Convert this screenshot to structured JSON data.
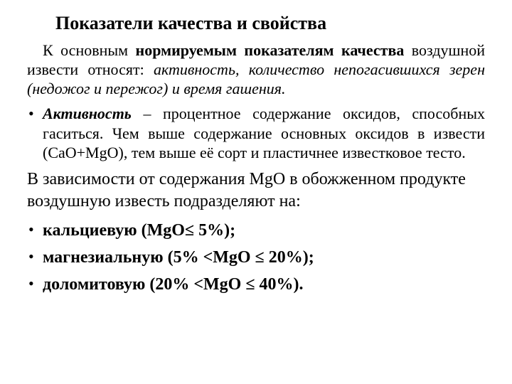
{
  "title": "Показатели качества и свойства",
  "intro": {
    "lead": "К основным ",
    "bold1": "нормируемым показателям качества",
    "mid": " воздушной извести относят: ",
    "italic_tail": "активность, количество непогасившихся зерен (недожог и пережог) и время гашения."
  },
  "activity": {
    "term": "Активность",
    "rest": " – процентное содержание оксидов, способных гаситься. Чем выше содержание основных оксидов в извести (CaO+MgO), тем выше её сорт и пластичнее известковое тесто."
  },
  "para2": "В зависимости от содержания MgO в обожженном продукте воздушную известь подразделяют на:",
  "types": [
    "кальциевую (MgO≤ 5%);",
    "магнезиальную (5% <MgO ≤ 20%);",
    "доломитовую (20% <MgO ≤ 40%)."
  ],
  "colors": {
    "background": "#ffffff",
    "text": "#000000"
  },
  "fonts": {
    "family": "Times New Roman",
    "title_pt": 26,
    "body_pt": 22,
    "list2_pt": 24
  }
}
